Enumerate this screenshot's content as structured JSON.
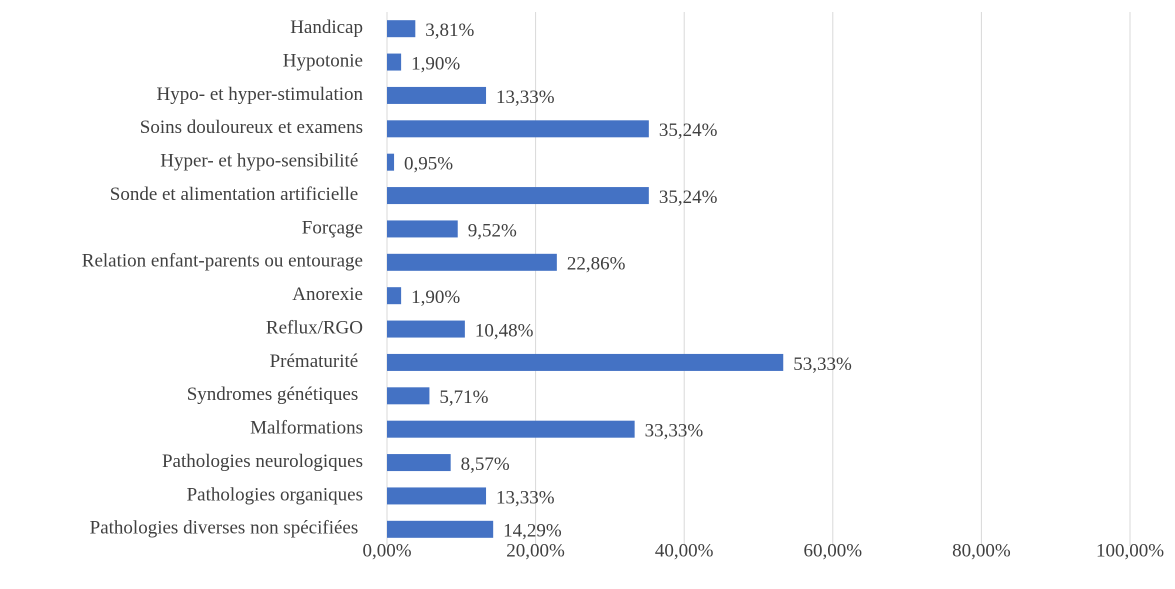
{
  "chart_data": {
    "type": "hbar",
    "categories": [
      "Handicap",
      "Hypotonie",
      "Hypo- et hyper-stimulation",
      "Soins douloureux et examens",
      "Hyper- et hypo-sensibilité ",
      "Sonde et alimentation artificielle ",
      "Forçage",
      "Relation enfant-parents ou entourage",
      "Anorexie",
      "Reflux/RGO",
      "Prématurité ",
      "Syndromes génétiques ",
      "Malformations",
      "Pathologies neurologiques",
      "Pathologies organiques",
      "Pathologies diverses non spécifiées "
    ],
    "values": [
      3.81,
      1.9,
      13.33,
      35.24,
      0.95,
      35.24,
      9.52,
      22.86,
      1.9,
      10.48,
      53.33,
      5.71,
      33.33,
      8.57,
      13.33,
      14.29
    ],
    "value_labels": [
      "3,81%",
      "1,90%",
      "13,33%",
      "35,24%",
      "0,95%",
      "35,24%",
      "9,52%",
      "22,86%",
      "1,90%",
      "10,48%",
      "53,33%",
      "5,71%",
      "33,33%",
      "8,57%",
      "13,33%",
      "14,29%"
    ],
    "color": "#4472c4",
    "xlim": [
      0,
      100
    ],
    "xticks": [
      {
        "value": 0,
        "label": "0,00%"
      },
      {
        "value": 20,
        "label": "20,00%"
      },
      {
        "value": 40,
        "label": "40,00%"
      },
      {
        "value": 60,
        "label": "60,00%"
      },
      {
        "value": 80,
        "label": "80,00%"
      },
      {
        "value": 100,
        "label": "100,00%"
      }
    ],
    "grid": true
  }
}
